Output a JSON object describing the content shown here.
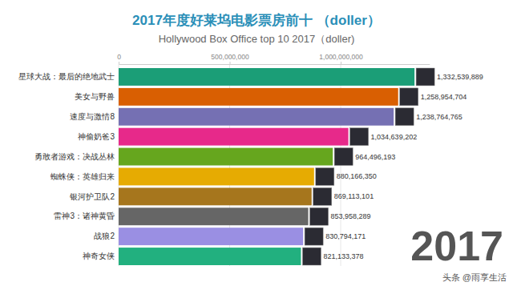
{
  "chart_data": {
    "type": "bar",
    "orientation": "horizontal",
    "title": "2017年度好莱坞电影票房前十 （doller）",
    "subtitle": "Hollywood Box Office top 10 2017（doller)",
    "categories": [
      "星球大战：最后的绝地武士",
      "美女与野兽",
      "速度与激情8",
      "神偷奶爸3",
      "勇敢者游戏：决战丛林",
      "蜘蛛侠：英雄归来",
      "银河护卫队2",
      "雷神3：诸神黄昏",
      "战狼2",
      "神奇女侠"
    ],
    "values": [
      1332539889,
      1258954704,
      1238764765,
      1034639202,
      964496193,
      880166350,
      869113101,
      853958289,
      830794171,
      821133378
    ],
    "value_labels": [
      "1,332,539,889",
      "1,258,954,704",
      "1,238,764,765",
      "1,034,639,202",
      "964,496,193",
      "880,166,350",
      "869,113,101",
      "853,958,289",
      "830,794,171",
      "821,133,378"
    ],
    "colors": [
      "#1b9e77",
      "#d95f02",
      "#7570b3",
      "#e7298a",
      "#66a61e",
      "#e6ab02",
      "#a6761d",
      "#666666",
      "#9a8fe3",
      "#22b07f"
    ],
    "xlim": [
      0,
      1400000000
    ],
    "xticks": [
      0,
      {
        "value": 500000000,
        "label": "500,000,000"
      },
      {
        "value": 1000000000,
        "label": "1,000,000,000"
      }
    ],
    "grid": true,
    "data_labels": true,
    "annotations": [
      "2017",
      "头条 @雨享生活"
    ]
  }
}
